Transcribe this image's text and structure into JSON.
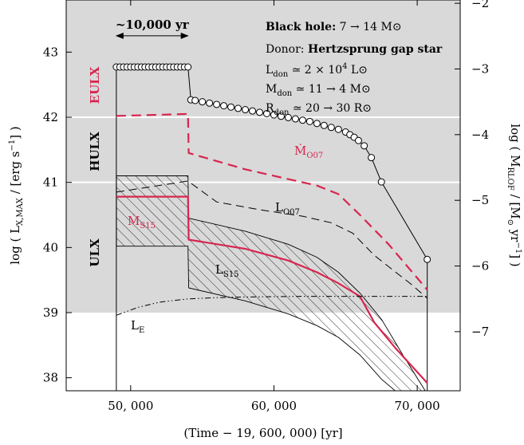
{
  "chart_data": {
    "type": "line",
    "xlabel": "(Time − 19, 600, 000) [yr]",
    "ylabel_left": "log ( L",
    "ylabel_left_sub": "X,MAX",
    "ylabel_left_tail": " / [erg s",
    "ylabel_left_sup": "−1",
    "ylabel_left_end": "] )",
    "ylabel_right": "log ( M",
    "ylabel_right_sub": "RLOF",
    "ylabel_right_tail": " / [M",
    "ylabel_right_sun": "⊙",
    "ylabel_right_unit": " yr",
    "ylabel_right_sup": "−1",
    "ylabel_right_end": "] )",
    "xlim": [
      45500,
      73000
    ],
    "ylim_left": [
      37.8,
      43.8
    ],
    "ylim_right": [
      -7.9,
      -1.95
    ],
    "xticks": [
      50000,
      60000,
      70000
    ],
    "xtick_labels": [
      "50, 000",
      "60, 000",
      "70, 000"
    ],
    "yticks_left": [
      38,
      39,
      40,
      41,
      42,
      43
    ],
    "yticks_right": [
      -7,
      -6,
      -5,
      -4,
      -3,
      -2
    ],
    "ytick_labels_right": [
      "−7",
      "−6",
      "−5",
      "−4",
      "−3",
      "−2"
    ],
    "bands": [
      {
        "name": "ULX",
        "range": [
          39,
          41
        ],
        "color": "#d9d9d9"
      },
      {
        "name": "HULX",
        "range": [
          41,
          42
        ],
        "color": "#d9d9d9"
      },
      {
        "name": "EULX",
        "range": [
          42,
          43.8
        ],
        "color": "#d9d9d9"
      }
    ],
    "band_boundaries": [
      41,
      42
    ],
    "span_arrow": {
      "label": "~10,000 yr",
      "x_from": 49000,
      "x_to": 54000,
      "y": 43.25
    },
    "info_box": {
      "line1_bold": "Black hole:",
      "line1_text": " 7 → 14 M⊙",
      "line2_text": "Donor: ",
      "line2_bold": "Hertzsprung gap star",
      "line3": "L",
      "line3_sub": "don",
      "line3_tail": " ≃ 2 × 10",
      "line3_sup": "4",
      "line3_end": " L⊙",
      "line4": "M",
      "line4_sub": "don",
      "line4_tail": " ≃ 11 → 4 M⊙",
      "line5": "R",
      "line5_sub": "don",
      "line5_tail": " ≃ 20 → 30 R⊙"
    },
    "series": [
      {
        "name": "Mdot RLOF",
        "axis": "right",
        "style": "circles",
        "x": [
          49000,
          49250,
          49500,
          49750,
          50000,
          50250,
          50500,
          50750,
          51000,
          51250,
          51500,
          51750,
          52000,
          52250,
          52500,
          52750,
          53000,
          53250,
          53500,
          53750,
          54000,
          54200,
          54500,
          55000,
          55500,
          56000,
          56500,
          57000,
          57500,
          58000,
          58500,
          59000,
          59500,
          60000,
          60500,
          61000,
          61500,
          62000,
          62500,
          63000,
          63500,
          64000,
          64500,
          65000,
          65300,
          65600,
          65900,
          66300,
          66800,
          67500,
          70700
        ],
        "y": [
          -2.97,
          -2.97,
          -2.97,
          -2.97,
          -2.97,
          -2.97,
          -2.97,
          -2.97,
          -2.97,
          -2.97,
          -2.97,
          -2.97,
          -2.97,
          -2.97,
          -2.97,
          -2.97,
          -2.97,
          -2.97,
          -2.97,
          -2.97,
          -2.97,
          -3.47,
          -3.48,
          -3.5,
          -3.52,
          -3.54,
          -3.56,
          -3.58,
          -3.6,
          -3.62,
          -3.64,
          -3.66,
          -3.68,
          -3.7,
          -3.72,
          -3.74,
          -3.76,
          -3.78,
          -3.8,
          -3.83,
          -3.86,
          -3.89,
          -3.92,
          -3.96,
          -4.0,
          -4.04,
          -4.09,
          -4.17,
          -4.35,
          -4.72,
          -5.9
        ]
      },
      {
        "name": "Ṁ",
        "name_sub": "O07",
        "axis": "left",
        "color": "#d7264f",
        "dash": "12,7",
        "x": [
          49000,
          54000,
          54050,
          58000,
          61000,
          63000,
          64500,
          66000,
          68000,
          70700
        ],
        "y": [
          42.02,
          42.05,
          41.45,
          41.2,
          41.05,
          40.95,
          40.82,
          40.5,
          40.05,
          39.35
        ]
      },
      {
        "name": "Ṁ",
        "name_sub": "S15",
        "axis": "left",
        "color": "#d7264f",
        "dash": "",
        "x": [
          49000,
          54000,
          54050,
          58000,
          61000,
          63000,
          64500,
          66000,
          67000,
          68500,
          70700
        ],
        "y": [
          40.78,
          40.78,
          40.12,
          39.98,
          39.8,
          39.62,
          39.45,
          39.25,
          38.85,
          38.45,
          37.92
        ]
      },
      {
        "name": "L",
        "name_sub": "O07",
        "axis": "left",
        "color": "#000000",
        "dash": "10,6",
        "x": [
          49000,
          54000,
          56000,
          59000,
          62000,
          64000,
          65500,
          67000,
          68500,
          69500,
          70700
        ],
        "y": [
          40.85,
          41.02,
          40.7,
          40.58,
          40.48,
          40.38,
          40.22,
          39.88,
          39.62,
          39.45,
          39.22
        ]
      },
      {
        "name": "L",
        "name_sub": "E",
        "axis": "left",
        "color": "#000000",
        "dash": "7,3,1.5,3,1.5,3",
        "x": [
          49000,
          50500,
          52000,
          54000,
          56000,
          58000,
          62000,
          66000,
          70700
        ],
        "y": [
          38.96,
          39.08,
          39.16,
          39.21,
          39.23,
          39.24,
          39.25,
          39.25,
          39.25
        ]
      }
    ],
    "hatched_region": {
      "name": "L",
      "name_sub": "S15",
      "upper": {
        "x": [
          49000,
          54000,
          54050,
          58000,
          61000,
          63000,
          64500,
          66000,
          67500,
          69000,
          70700
        ],
        "y": [
          41.1,
          41.1,
          40.45,
          40.25,
          40.05,
          39.85,
          39.62,
          39.3,
          38.9,
          38.35,
          37.75
        ]
      },
      "lower": {
        "x": [
          49000,
          54000,
          54050,
          58000,
          61000,
          63000,
          64500,
          66000,
          67500,
          69000,
          70700
        ],
        "y": [
          40.02,
          40.02,
          39.38,
          39.18,
          38.98,
          38.8,
          38.62,
          38.35,
          37.98,
          37.7,
          37.55
        ]
      }
    }
  }
}
